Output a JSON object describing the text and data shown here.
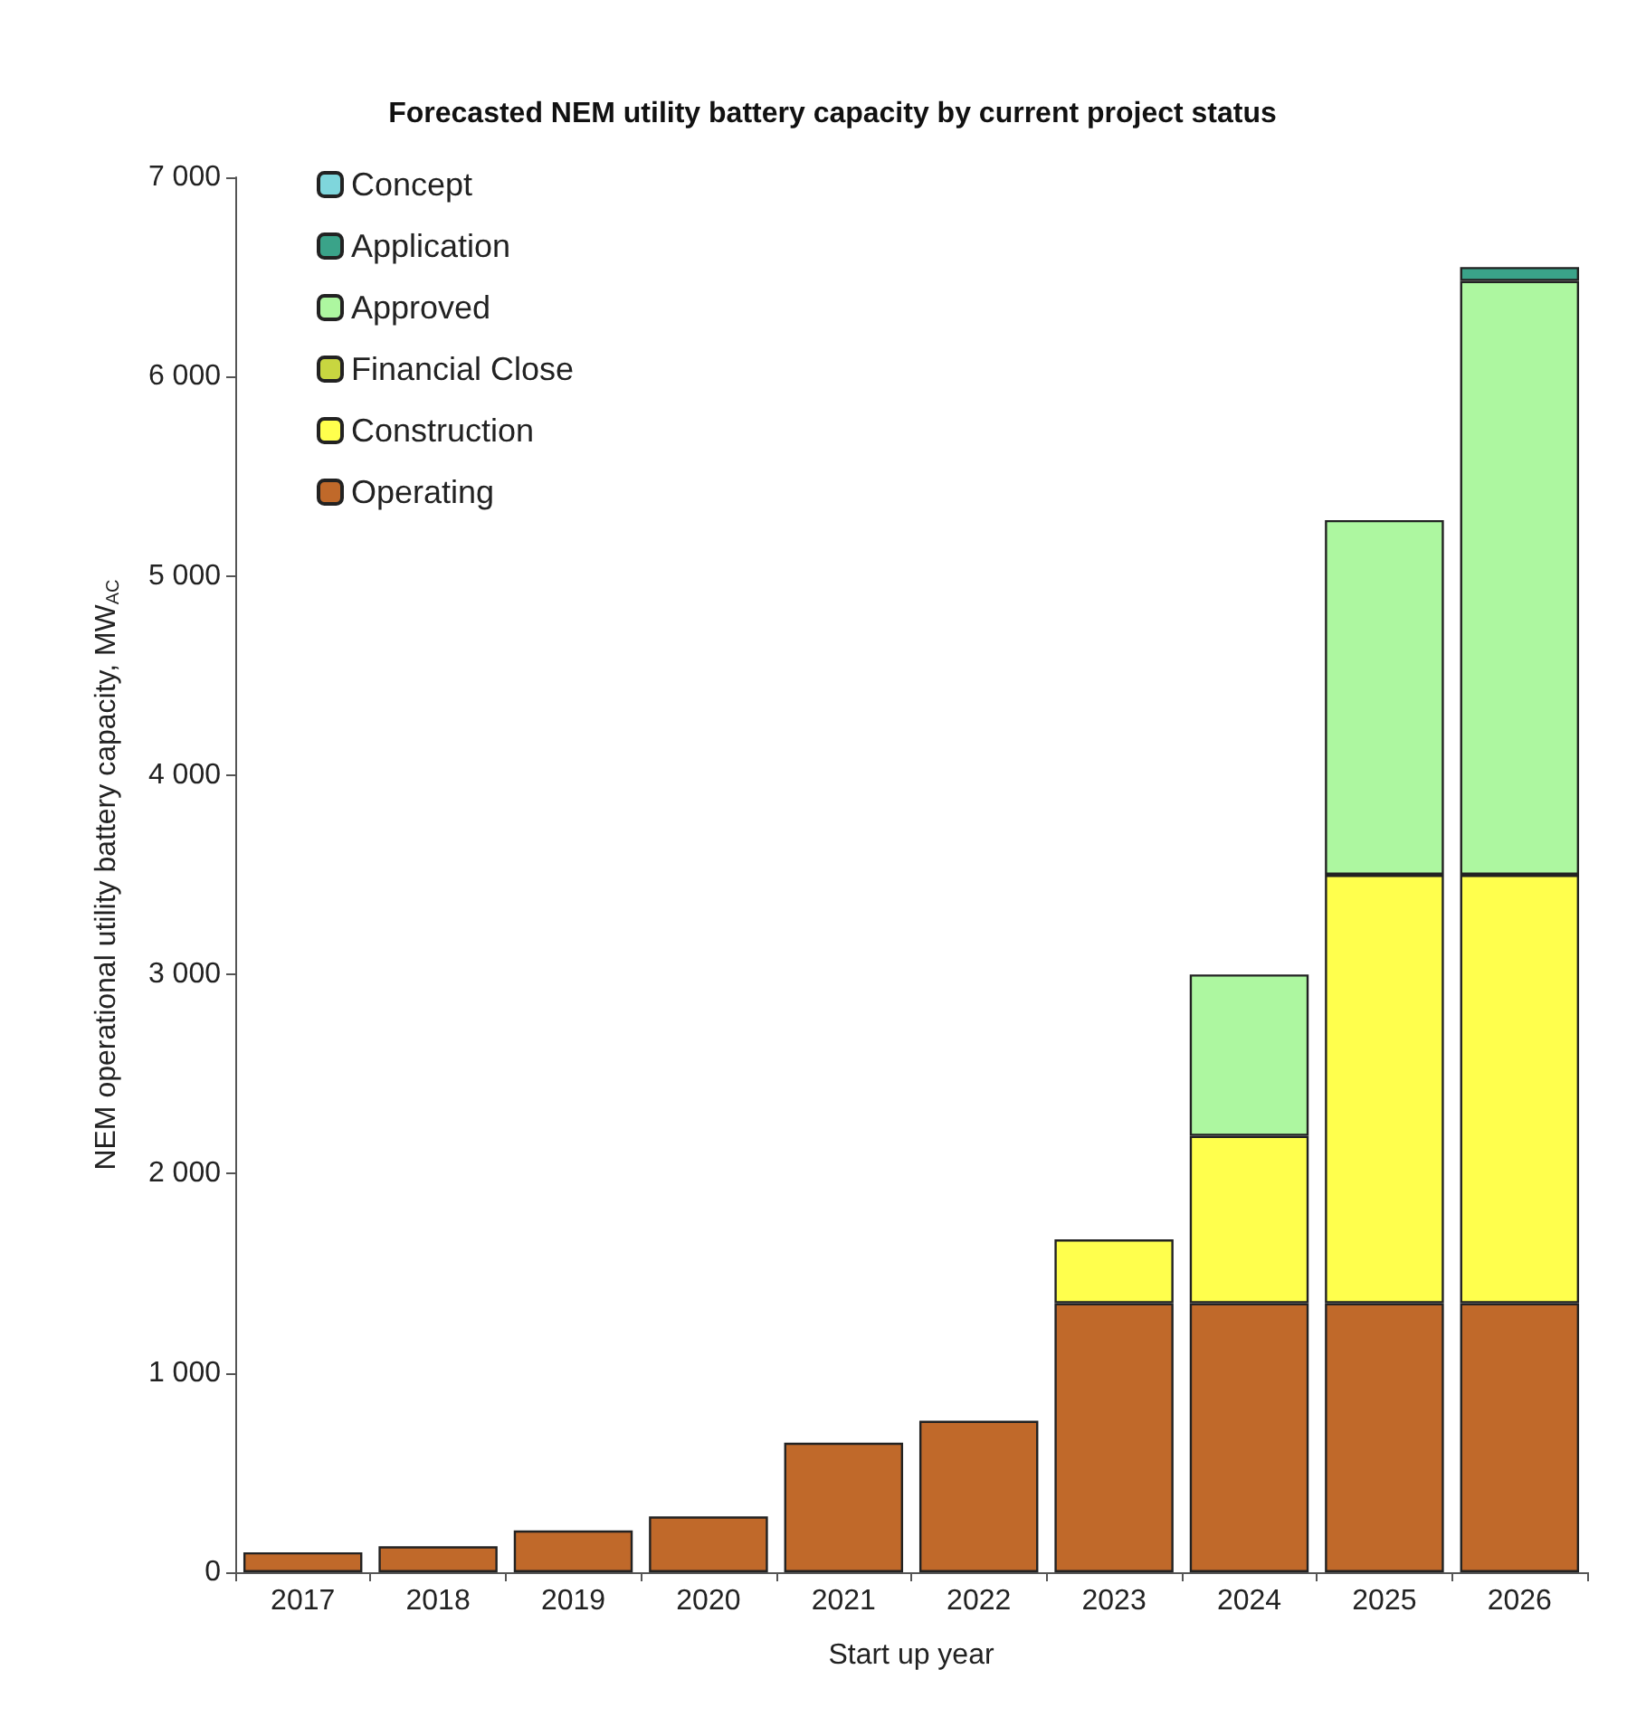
{
  "chart_data": {
    "type": "bar",
    "title": "Forecasted NEM utility battery capacity by current project status",
    "xlabel": "Start up year",
    "ylabel": "NEM operational utility battery capacity, MW$_{AC}$",
    "categories": [
      "2017",
      "2018",
      "2019",
      "2020",
      "2021",
      "2022",
      "2023",
      "2024",
      "2025",
      "2026"
    ],
    "stacked": true,
    "series": [
      {
        "name": "Operating",
        "color": "#c0692a",
        "values": [
          100,
          130,
          210,
          280,
          650,
          760,
          1350,
          1350,
          1350,
          1350
        ]
      },
      {
        "name": "Construction",
        "color": "#ffff4d",
        "values": [
          null,
          null,
          null,
          null,
          null,
          null,
          320,
          840,
          2150,
          2150
        ]
      },
      {
        "name": "Financial Close",
        "color": "#c8d640",
        "values": [
          null,
          null,
          null,
          null,
          null,
          null,
          null,
          null,
          null,
          null
        ]
      },
      {
        "name": "Approved",
        "color": "#adf7a0",
        "values": [
          null,
          null,
          null,
          null,
          null,
          null,
          null,
          810,
          1780,
          2980
        ]
      },
      {
        "name": "Application",
        "color": "#3aa389",
        "values": [
          null,
          null,
          null,
          null,
          null,
          null,
          null,
          null,
          null,
          70
        ]
      },
      {
        "name": "Concept",
        "color": "#7fd6dc",
        "values": [
          null,
          null,
          null,
          null,
          null,
          null,
          null,
          null,
          null,
          null
        ]
      }
    ],
    "ylim": [
      0,
      7000
    ],
    "yticks": [
      0,
      {
        "value": 1000,
        "label": "1 000"
      },
      {
        "value": 2000,
        "label": "2 000"
      },
      {
        "value": 3000,
        "label": "3 000"
      },
      {
        "value": 4000,
        "label": "4 000"
      },
      {
        "value": 5000,
        "label": "5 000"
      },
      {
        "value": 6000,
        "label": "6 000"
      },
      {
        "value": 7000,
        "label": "7 000"
      }
    ],
    "grid": false,
    "legend": "top left"
  }
}
